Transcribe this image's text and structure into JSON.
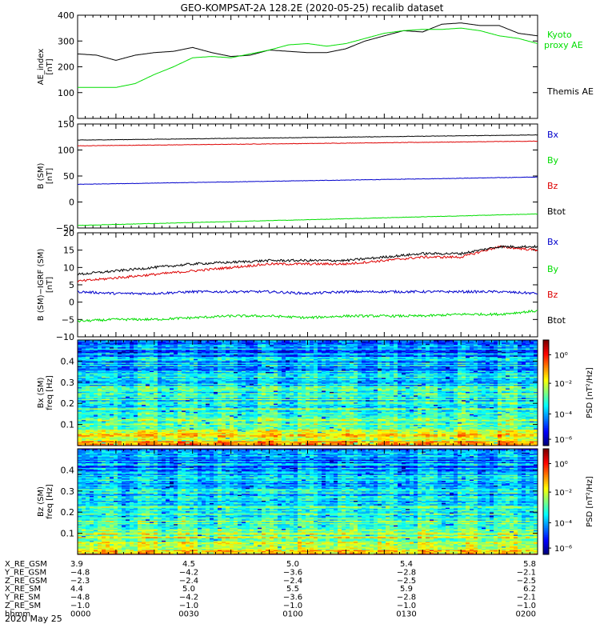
{
  "title": "GEO-KOMPSAT-2A 128.2E (2020-05-25) recalib dataset",
  "colors": {
    "black": "#000000",
    "green": "#00dd00",
    "red": "#dd0000",
    "blue": "#0000cc"
  },
  "chart_data": [
    {
      "type": "line",
      "ylabel": [
        "AE_index",
        "[nT]"
      ],
      "ylim": [
        0,
        400
      ],
      "yticks": [
        "0",
        "100",
        "200",
        "300",
        "400"
      ],
      "x": [
        0,
        5,
        10,
        15,
        20,
        25,
        30,
        35,
        40,
        45,
        50,
        55,
        60,
        65,
        70,
        75,
        80,
        85,
        90,
        95,
        100,
        105,
        110,
        115,
        120
      ],
      "series": [
        {
          "name": "Themis AE",
          "color": "#000000",
          "values": [
            250,
            245,
            225,
            245,
            255,
            260,
            275,
            255,
            240,
            245,
            265,
            260,
            255,
            255,
            270,
            300,
            320,
            340,
            335,
            365,
            370,
            360,
            360,
            330,
            320
          ]
        },
        {
          "name": "Kyoto proxy AE",
          "color": "#00dd00",
          "values": [
            120,
            120,
            120,
            135,
            170,
            200,
            235,
            240,
            235,
            250,
            265,
            285,
            290,
            280,
            290,
            310,
            330,
            340,
            345,
            345,
            350,
            340,
            320,
            310,
            290
          ]
        }
      ],
      "legend_labels": [
        [
          "Kyoto",
          "proxy AE"
        ],
        [
          "Themis AE"
        ]
      ]
    },
    {
      "type": "line",
      "ylabel": [
        "B (SM)",
        "[nT]"
      ],
      "ylim": [
        -50,
        150
      ],
      "yticks": [
        "−50",
        "0",
        "50",
        "100",
        "150"
      ],
      "x": [
        0,
        120
      ],
      "series": [
        {
          "name": "Bx",
          "color": "#0000cc",
          "values": [
            34,
            48
          ]
        },
        {
          "name": "By",
          "color": "#00dd00",
          "values": [
            -45,
            -23
          ]
        },
        {
          "name": "Bz",
          "color": "#dd0000",
          "values": [
            108,
            117
          ]
        },
        {
          "name": "Btot",
          "color": "#000000",
          "values": [
            119,
            129
          ]
        }
      ],
      "legend_labels": [
        "Bx",
        "By",
        "Bz",
        "Btot"
      ]
    },
    {
      "type": "line",
      "ylabel": [
        "B (SM)−IGRF (SM)",
        "[nT]"
      ],
      "ylim": [
        -10,
        20
      ],
      "yticks": [
        "−10",
        "−5",
        "0",
        "5",
        "10",
        "15",
        "20"
      ],
      "x": [
        0,
        10,
        20,
        30,
        40,
        50,
        60,
        70,
        80,
        90,
        100,
        110,
        120
      ],
      "series": [
        {
          "name": "Bx",
          "color": "#0000cc",
          "values": [
            3,
            2.5,
            2.5,
            3,
            3,
            3,
            2.5,
            3,
            3,
            3,
            3,
            3,
            2.5
          ]
        },
        {
          "name": "By",
          "color": "#00dd00",
          "values": [
            -5.5,
            -5,
            -5,
            -4.5,
            -4,
            -4,
            -4.5,
            -4,
            -4,
            -4,
            -3.5,
            -3.5,
            -2.5
          ]
        },
        {
          "name": "Bz",
          "color": "#dd0000",
          "values": [
            6,
            7,
            8,
            9,
            10,
            11,
            11,
            11,
            12,
            13,
            13,
            16,
            15
          ]
        },
        {
          "name": "Btot",
          "color": "#000000",
          "values": [
            8,
            9,
            10,
            11,
            11.5,
            12,
            12,
            12,
            13,
            14,
            14,
            16,
            16
          ]
        }
      ],
      "legend_labels": [
        "Bx",
        "By",
        "Bz",
        "Btot"
      ]
    },
    {
      "type": "heatmap",
      "ylabel": [
        "Bx (SM)",
        "freq [Hz]"
      ],
      "ylim": [
        0,
        0.5
      ],
      "yticks": [
        "0.1",
        "0.2",
        "0.3",
        "0.4"
      ],
      "colorbar": {
        "label": "PSD [nT²/Hz]",
        "ticks": [
          "10⁰",
          "10⁻²",
          "10⁻⁴",
          "10⁻⁶"
        ]
      }
    },
    {
      "type": "heatmap",
      "ylabel": [
        "Bz (SM)",
        "freq [Hz]"
      ],
      "ylim": [
        0,
        0.5
      ],
      "yticks": [
        "0.1",
        "0.2",
        "0.3",
        "0.4"
      ],
      "colorbar": {
        "label": "PSD [nT²/Hz]",
        "ticks": [
          "10⁰",
          "10⁻²",
          "10⁻⁴",
          "10⁻⁶"
        ]
      }
    }
  ],
  "xaxis": {
    "rows": [
      {
        "label": "X_RE_GSM",
        "values": [
          "3.9",
          "4.5",
          "5.0",
          "5.4",
          "5.8"
        ]
      },
      {
        "label": "Y_RE_GSM",
        "values": [
          "−4.8",
          "−4.2",
          "−3.6",
          "−2.8",
          "−2.1"
        ]
      },
      {
        "label": "Z_RE_GSM",
        "values": [
          "−2.3",
          "−2.4",
          "−2.4",
          "−2.5",
          "−2.5"
        ]
      },
      {
        "label": "X_RE_SM",
        "values": [
          "4.4",
          "5.0",
          "5.5",
          "5.9",
          "6.2"
        ]
      },
      {
        "label": "Y_RE_SM",
        "values": [
          "−4.8",
          "−4.2",
          "−3.6",
          "−2.8",
          "−2.1"
        ]
      },
      {
        "label": "Z_RE_SM",
        "values": [
          "−1.0",
          "−1.0",
          "−1.0",
          "−1.0",
          "−1.0"
        ]
      },
      {
        "label": "hhmm",
        "values": [
          "0000",
          "0030",
          "0100",
          "0130",
          "0200"
        ]
      }
    ],
    "date": "2020 May 25"
  }
}
